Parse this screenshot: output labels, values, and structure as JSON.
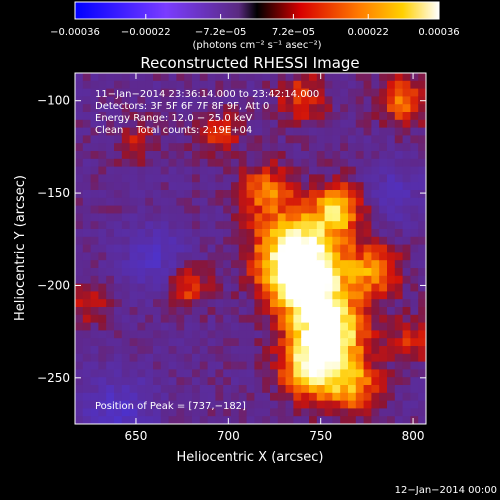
{
  "chart_data": {
    "type": "heatmap",
    "title": "Reconstructed RHESSI Image",
    "xlabel": "Heliocentric X (arcsec)",
    "ylabel": "Heliocentric Y (arcsec)",
    "xlim": [
      617,
      807
    ],
    "ylim": [
      -275,
      -85
    ],
    "x_ticks": [
      650,
      700,
      750,
      800
    ],
    "y_ticks": [
      -100,
      -150,
      -200,
      -250
    ],
    "x_tick_labels": [
      "650",
      "700",
      "750",
      "800"
    ],
    "y_tick_labels": [
      "−100",
      "−150",
      "−200",
      "−250"
    ],
    "colorbar": {
      "range": [
        -0.00036,
        0.00036
      ],
      "tick_values": [
        -0.00036,
        -0.00022,
        -7.2e-05,
        7.2e-05,
        0.00022,
        0.00036
      ],
      "tick_labels": [
        "−0.00036",
        "−0.00022",
        "−7.2e−05",
        "7.2e−05",
        "0.00022",
        "0.00036"
      ],
      "units": "(photons cm⁻² s⁻¹ asec⁻²)"
    },
    "annotations": [
      "11−Jan−2014 23:36:14.000 to 23:42:14.000",
      "Detectors: 3F 5F 6F 7F 8F 9F, Att 0",
      "Energy Range: 12.0 − 25.0 keV",
      "Clean    Total counts: 2.19E+04"
    ],
    "peak_label": "Position of Peak = [737,−182]",
    "peak": [
      737,
      -182
    ],
    "timestamp": "12−Jan−2014 00:00",
    "sources": [
      {
        "x": 737,
        "y": -182,
        "amp": 1.0,
        "sigma": 16
      },
      {
        "x": 742,
        "y": -200,
        "amp": 0.85,
        "sigma": 13
      },
      {
        "x": 755,
        "y": -225,
        "amp": 1.0,
        "sigma": 14
      },
      {
        "x": 745,
        "y": -245,
        "amp": 0.8,
        "sigma": 12
      },
      {
        "x": 760,
        "y": -158,
        "amp": 0.7,
        "sigma": 10
      },
      {
        "x": 720,
        "y": -148,
        "amp": 0.55,
        "sigma": 10
      },
      {
        "x": 778,
        "y": -192,
        "amp": 0.55,
        "sigma": 11
      },
      {
        "x": 768,
        "y": -255,
        "amp": 0.6,
        "sigma": 10
      },
      {
        "x": 795,
        "y": -100,
        "amp": 0.6,
        "sigma": 9
      },
      {
        "x": 678,
        "y": -200,
        "amp": 0.5,
        "sigma": 8
      },
      {
        "x": 695,
        "y": -118,
        "amp": 0.35,
        "sigma": 9
      },
      {
        "x": 740,
        "y": -98,
        "amp": 0.4,
        "sigma": 10
      },
      {
        "x": 800,
        "y": -230,
        "amp": 0.35,
        "sigma": 9
      },
      {
        "x": 650,
        "y": -122,
        "amp": 0.3,
        "sigma": 8
      },
      {
        "x": 625,
        "y": -210,
        "amp": 0.3,
        "sigma": 8
      },
      {
        "x": 640,
        "y": -268,
        "amp": -0.45,
        "sigma": 14
      },
      {
        "x": 660,
        "y": -185,
        "amp": -0.4,
        "sigma": 12
      },
      {
        "x": 790,
        "y": -150,
        "amp": -0.3,
        "sigma": 12
      }
    ]
  }
}
